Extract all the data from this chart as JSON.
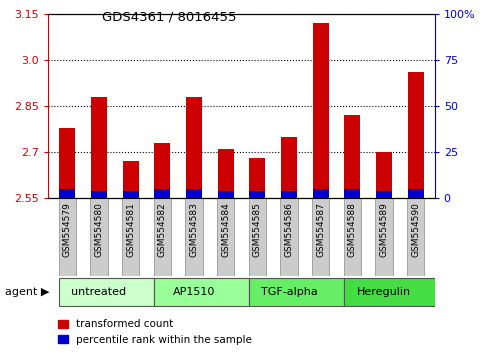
{
  "title": "GDS4361 / 8016455",
  "samples": [
    "GSM554579",
    "GSM554580",
    "GSM554581",
    "GSM554582",
    "GSM554583",
    "GSM554584",
    "GSM554585",
    "GSM554586",
    "GSM554587",
    "GSM554588",
    "GSM554589",
    "GSM554590"
  ],
  "transformed_counts": [
    2.78,
    2.88,
    2.67,
    2.73,
    2.88,
    2.71,
    2.68,
    2.75,
    3.12,
    2.82,
    2.7,
    2.96
  ],
  "percentile_ranks": [
    5,
    4,
    4,
    5,
    5,
    4,
    4,
    4,
    5,
    5,
    4,
    5
  ],
  "base": 2.55,
  "ylim_left": [
    2.55,
    3.15
  ],
  "yticks_left": [
    2.55,
    2.7,
    2.85,
    3.0,
    3.15
  ],
  "yticks_right": [
    0,
    25,
    50,
    75,
    100
  ],
  "ylim_right": [
    0,
    100
  ],
  "agents": [
    {
      "label": "untreated",
      "start": 0,
      "end": 3,
      "color": "#ccffcc"
    },
    {
      "label": "AP1510",
      "start": 3,
      "end": 6,
      "color": "#99ff99"
    },
    {
      "label": "TGF-alpha",
      "start": 6,
      "end": 9,
      "color": "#66ee66"
    },
    {
      "label": "Heregulin",
      "start": 9,
      "end": 12,
      "color": "#44dd44"
    }
  ],
  "bar_color_red": "#cc0000",
  "bar_color_blue": "#0000cc",
  "axis_color_left": "#cc0000",
  "axis_color_right": "#0000cc",
  "bar_width": 0.5,
  "sample_box_color": "#cccccc",
  "sample_box_edge": "#888888"
}
